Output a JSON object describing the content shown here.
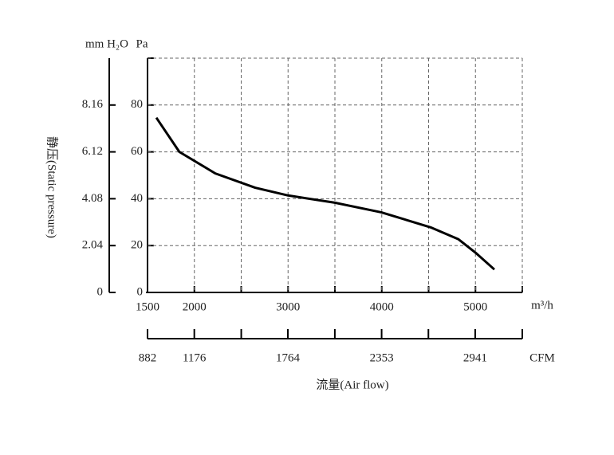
{
  "chart_data": {
    "type": "line",
    "y_unit": "Pa",
    "y2_unit": "mm H₂O",
    "x_unit": "m³/h",
    "x2_unit": "CFM",
    "y_label": "静压(Static pressure)",
    "x_label": "流量(Air flow)",
    "x": [
      1594,
      1840,
      2223,
      2649,
      3000,
      3500,
      3994,
      4521,
      4819,
      5000,
      5202
    ],
    "series": [
      {
        "name": "Static pressure",
        "color": "#000000",
        "values": [
          74.6,
          60,
          50.8,
          44.7,
          41.4,
          38.3,
          34.2,
          27.8,
          22.7,
          17,
          9.8
        ]
      }
    ],
    "xlim": [
      1500,
      5500
    ],
    "xticks": [
      1500,
      2000,
      {
        "value": 2500,
        "label": null
      },
      3000,
      {
        "value": 3500,
        "label": null
      },
      4000,
      {
        "value": 4500,
        "label": null
      },
      5000,
      {
        "value": 5500,
        "label": null
      }
    ],
    "x2lim": [
      882,
      3237
    ],
    "x2ticks": [
      882,
      1176,
      {
        "value": 1471,
        "label": null
      },
      1764,
      {
        "value": 2059,
        "label": null
      },
      2353,
      {
        "value": 2647,
        "label": null
      },
      2941,
      {
        "value": 3237,
        "label": null
      }
    ],
    "ylim": [
      0,
      100
    ],
    "yticks": [
      0,
      20,
      40,
      60,
      80,
      {
        "value": 100,
        "label": null
      }
    ],
    "y2lim": [
      0,
      10.2
    ],
    "y2ticks": [
      0,
      2.04,
      4.08,
      6.12,
      8.16
    ],
    "grid": true
  }
}
